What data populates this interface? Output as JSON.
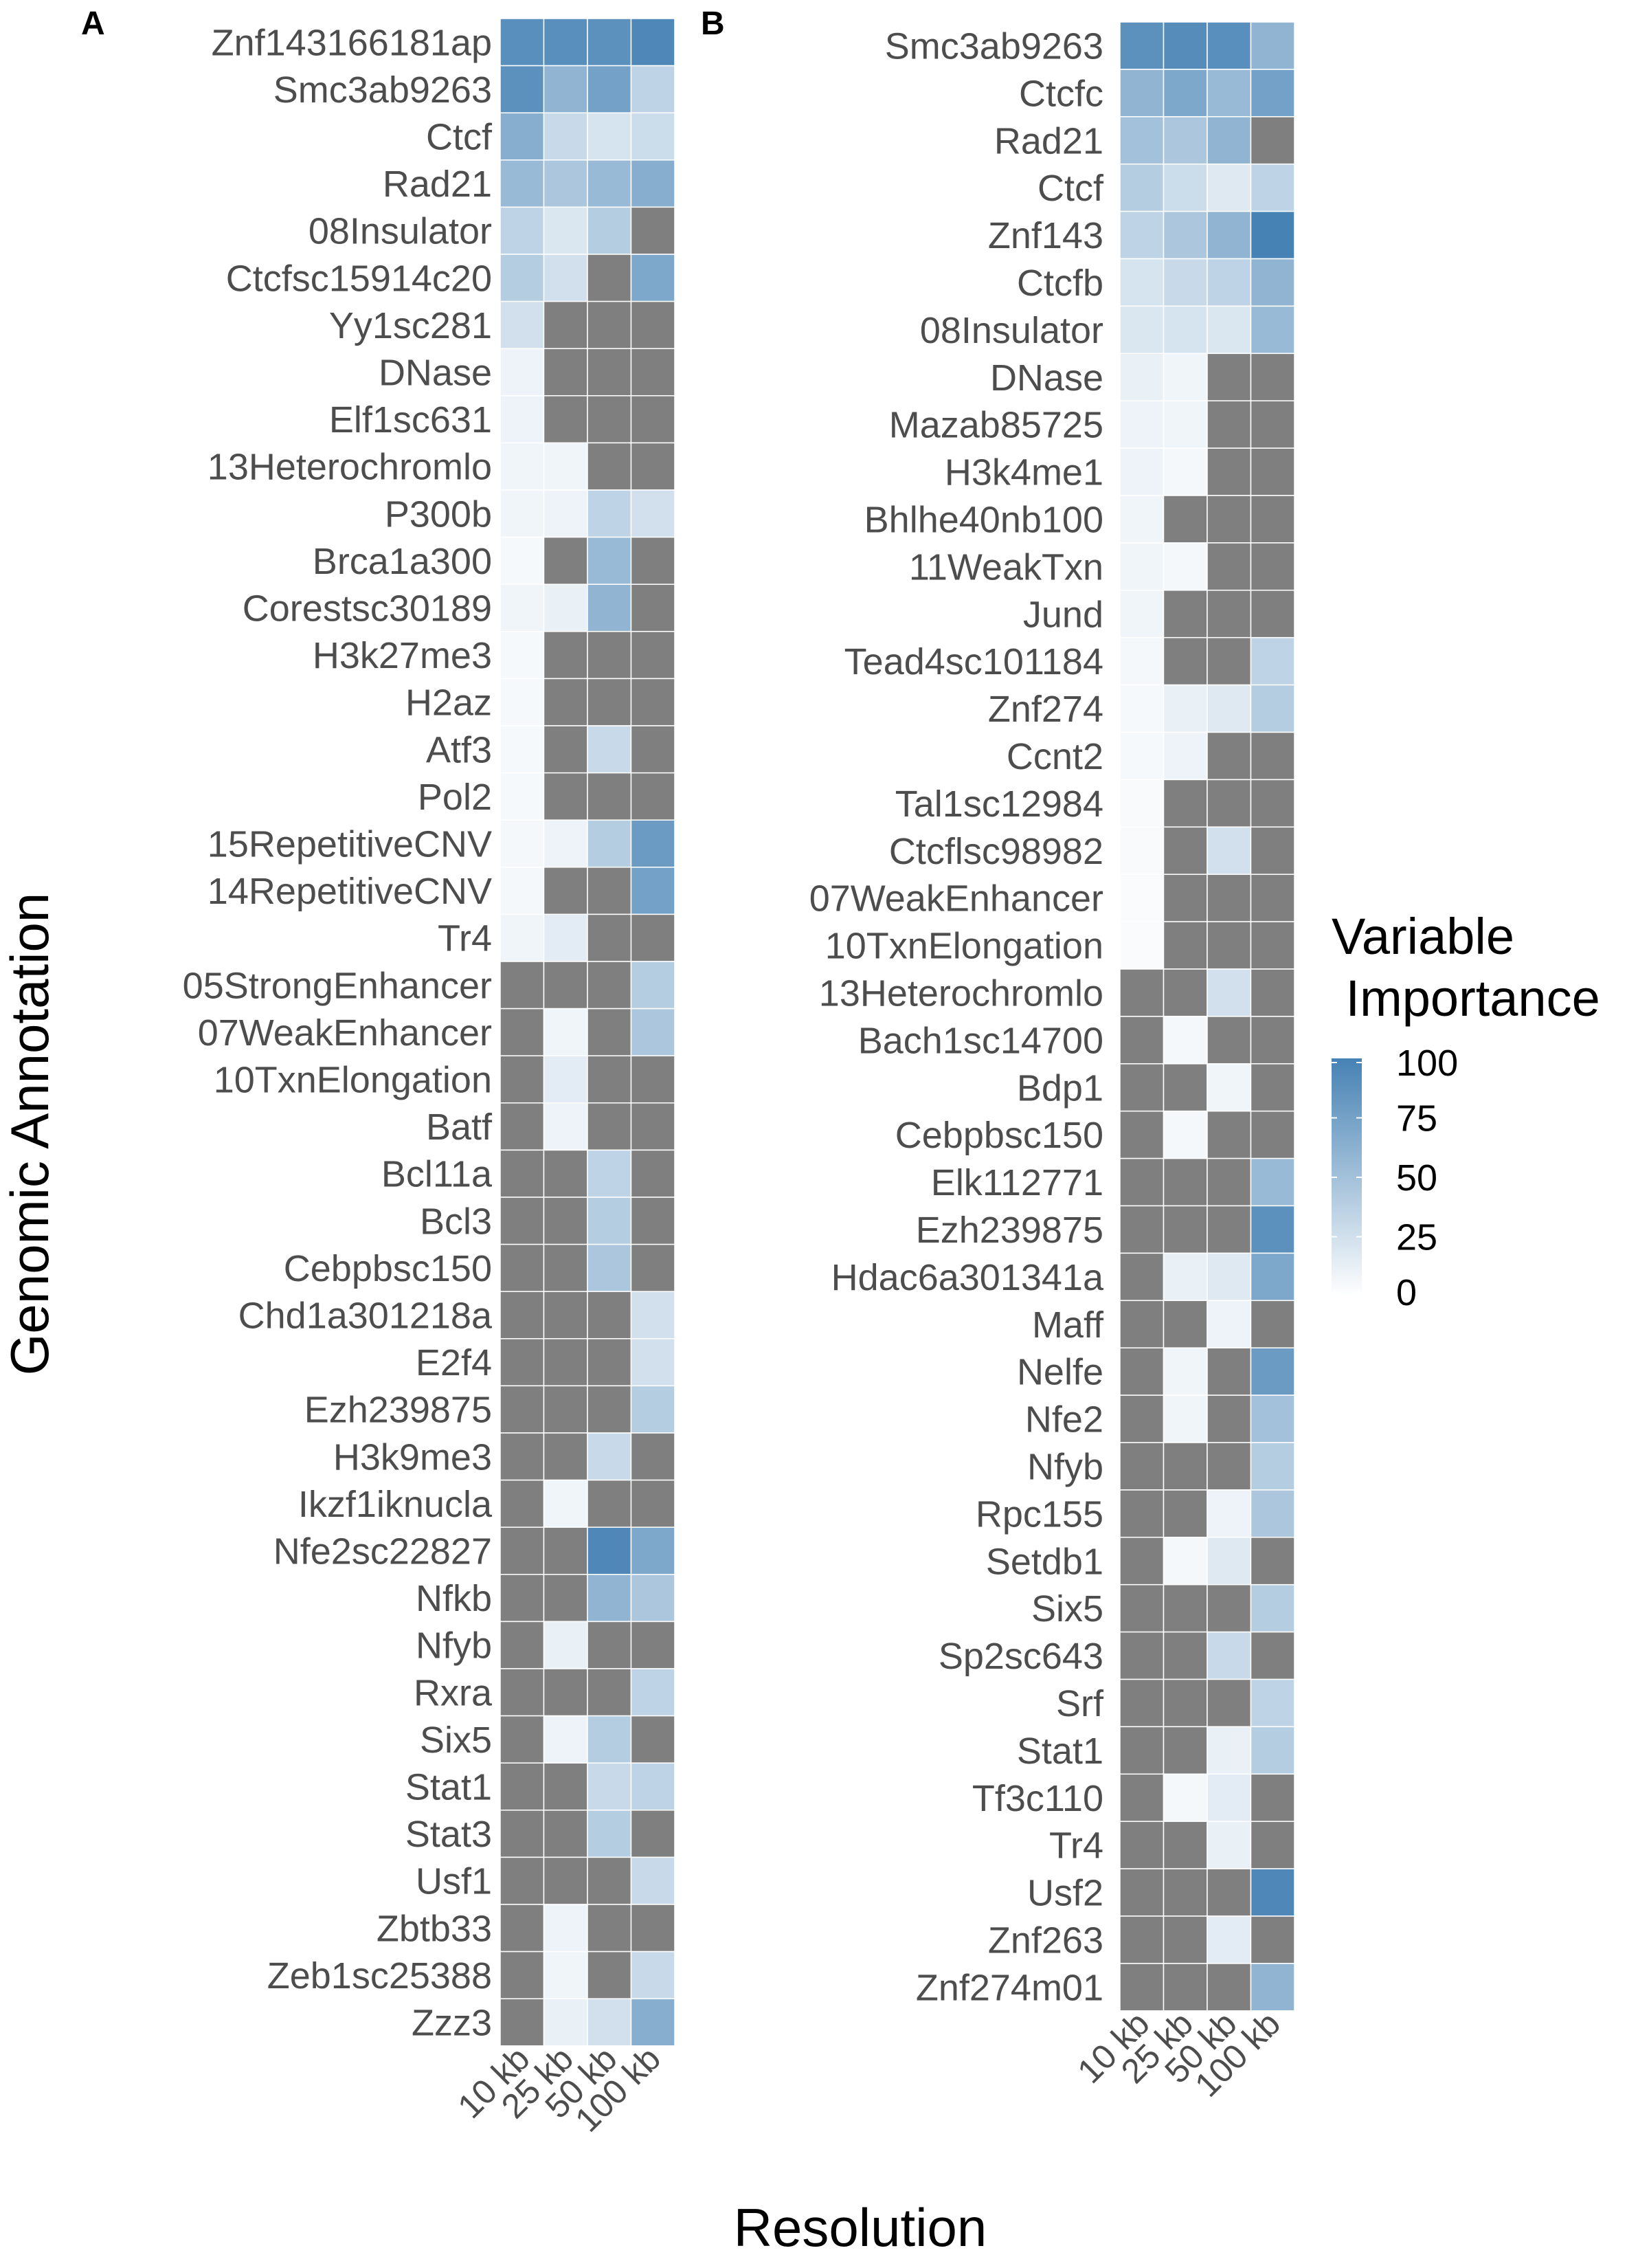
{
  "figure": {
    "y_axis_title": "Genomic Annotation",
    "x_axis_title": "Resolution",
    "legend_title": [
      "Variable",
      " Importance"
    ],
    "legend_ticks": [
      100,
      75,
      50,
      25,
      0
    ],
    "colors": {
      "high": "#4682b4",
      "low": "#ffffff",
      "na": "#7f7f7f",
      "text": "#4d4d4d"
    }
  },
  "chart_data": [
    {
      "type": "heatmap",
      "panel_label": "A",
      "columns": [
        "10 kb",
        "25 kb",
        "50 kb",
        "100 kb"
      ],
      "rows": [
        "Znf143166181ap",
        "Smc3ab9263",
        "Ctcf",
        "Rad21",
        "08Insulator",
        "Ctcfsc15914c20",
        "Yy1sc281",
        "DNase",
        "Elf1sc631",
        "13Heterochromlo",
        "P300b",
        "Brca1a300",
        "Corestsc30189",
        "H3k27me3",
        "H2az",
        "Atf3",
        "Pol2",
        "15RepetitiveCNV",
        "14RepetitiveCNV",
        "Tr4",
        "05StrongEnhancer",
        "07WeakEnhancer",
        "10TxnElongation",
        "Batf",
        "Bcl11a",
        "Bcl3",
        "Cebpbsc150",
        "Chd1a301218a",
        "E2f4",
        "Ezh239875",
        "H3k9me3",
        "Ikzf1iknucla",
        "Nfe2sc22827",
        "Nfkb",
        "Nfyb",
        "Rxra",
        "Six5",
        "Stat1",
        "Stat3",
        "Usf1",
        "Zbtb33",
        "Zeb1sc25388",
        "Zzz3"
      ],
      "values": [
        [
          90,
          90,
          88,
          95
        ],
        [
          88,
          60,
          75,
          35
        ],
        [
          65,
          30,
          22,
          28
        ],
        [
          55,
          45,
          55,
          65
        ],
        [
          35,
          20,
          40,
          null
        ],
        [
          40,
          25,
          null,
          70
        ],
        [
          25,
          null,
          null,
          null
        ],
        [
          10,
          null,
          null,
          null
        ],
        [
          10,
          null,
          null,
          null
        ],
        [
          8,
          8,
          null,
          null
        ],
        [
          8,
          10,
          35,
          25
        ],
        [
          5,
          null,
          55,
          null
        ],
        [
          8,
          12,
          60,
          null
        ],
        [
          5,
          null,
          null,
          null
        ],
        [
          5,
          null,
          null,
          null
        ],
        [
          5,
          null,
          30,
          null
        ],
        [
          5,
          null,
          null,
          null
        ],
        [
          6,
          10,
          40,
          80
        ],
        [
          6,
          null,
          null,
          75
        ],
        [
          8,
          15,
          null,
          null
        ],
        [
          null,
          null,
          null,
          40
        ],
        [
          null,
          8,
          null,
          45
        ],
        [
          null,
          15,
          null,
          null
        ],
        [
          null,
          10,
          null,
          null
        ],
        [
          null,
          null,
          35,
          null
        ],
        [
          null,
          null,
          40,
          null
        ],
        [
          null,
          null,
          45,
          null
        ],
        [
          null,
          null,
          null,
          25
        ],
        [
          null,
          null,
          null,
          25
        ],
        [
          null,
          null,
          null,
          40
        ],
        [
          null,
          null,
          30,
          null
        ],
        [
          null,
          8,
          null,
          null
        ],
        [
          null,
          null,
          95,
          70
        ],
        [
          null,
          null,
          60,
          45
        ],
        [
          null,
          12,
          null,
          null
        ],
        [
          null,
          null,
          null,
          35
        ],
        [
          null,
          10,
          40,
          null
        ],
        [
          null,
          null,
          30,
          35
        ],
        [
          null,
          null,
          40,
          null
        ],
        [
          null,
          null,
          null,
          30
        ],
        [
          null,
          10,
          null,
          null
        ],
        [
          null,
          8,
          null,
          30
        ],
        [
          null,
          12,
          25,
          65
        ]
      ],
      "scale": [
        0,
        100
      ]
    },
    {
      "type": "heatmap",
      "panel_label": "B",
      "columns": [
        "10 kb",
        "25 kb",
        "50 kb",
        "100 kb"
      ],
      "rows": [
        "Smc3ab9263",
        "Ctcfc",
        "Rad21",
        "Ctcf",
        "Znf143",
        "Ctcfb",
        "08Insulator",
        "DNase",
        "Mazab85725",
        "H3k4me1",
        "Bhlhe40nb100",
        "11WeakTxn",
        "Jund",
        "Tead4sc101184",
        "Znf274",
        "Ccnt2",
        "Tal1sc12984",
        "Ctcflsc98982",
        "07WeakEnhancer",
        "10TxnElongation",
        "13Heterochromlo",
        "Bach1sc14700",
        "Bdp1",
        "Cebpbsc150",
        "Elk112771",
        "Ezh239875",
        "Hdac6a301341a",
        "Maff",
        "Nelfe",
        "Nfe2",
        "Nfyb",
        "Rpc155",
        "Setdb1",
        "Six5",
        "Sp2sc643",
        "Srf",
        "Stat1",
        "Tf3c110",
        "Tr4",
        "Usf2",
        "Znf263",
        "Znf274m01"
      ],
      "values": [
        [
          88,
          92,
          90,
          60
        ],
        [
          60,
          70,
          55,
          75
        ],
        [
          50,
          45,
          60,
          null
        ],
        [
          40,
          28,
          18,
          35
        ],
        [
          35,
          45,
          60,
          100
        ],
        [
          22,
          30,
          35,
          60
        ],
        [
          20,
          22,
          20,
          55
        ],
        [
          12,
          8,
          null,
          null
        ],
        [
          10,
          8,
          null,
          null
        ],
        [
          10,
          6,
          null,
          null
        ],
        [
          8,
          null,
          null,
          null
        ],
        [
          8,
          6,
          null,
          null
        ],
        [
          8,
          null,
          null,
          null
        ],
        [
          6,
          null,
          null,
          35
        ],
        [
          5,
          12,
          18,
          40
        ],
        [
          5,
          10,
          null,
          null
        ],
        [
          4,
          null,
          null,
          null
        ],
        [
          4,
          null,
          25,
          null
        ],
        [
          3,
          null,
          null,
          null
        ],
        [
          3,
          null,
          null,
          null
        ],
        [
          null,
          null,
          25,
          null
        ],
        [
          null,
          6,
          null,
          null
        ],
        [
          null,
          null,
          8,
          null
        ],
        [
          null,
          6,
          null,
          null
        ],
        [
          null,
          null,
          null,
          55
        ],
        [
          null,
          null,
          null,
          88
        ],
        [
          null,
          12,
          18,
          70
        ],
        [
          null,
          null,
          10,
          null
        ],
        [
          null,
          8,
          null,
          80
        ],
        [
          null,
          8,
          null,
          50
        ],
        [
          null,
          null,
          null,
          40
        ],
        [
          null,
          null,
          10,
          45
        ],
        [
          null,
          6,
          18,
          null
        ],
        [
          null,
          null,
          null,
          40
        ],
        [
          null,
          null,
          30,
          null
        ],
        [
          null,
          null,
          null,
          35
        ],
        [
          null,
          null,
          12,
          40
        ],
        [
          null,
          6,
          15,
          null
        ],
        [
          null,
          null,
          12,
          null
        ],
        [
          null,
          null,
          null,
          95
        ],
        [
          null,
          null,
          15,
          null
        ],
        [
          null,
          null,
          null,
          60
        ]
      ],
      "scale": [
        0,
        100
      ]
    }
  ]
}
